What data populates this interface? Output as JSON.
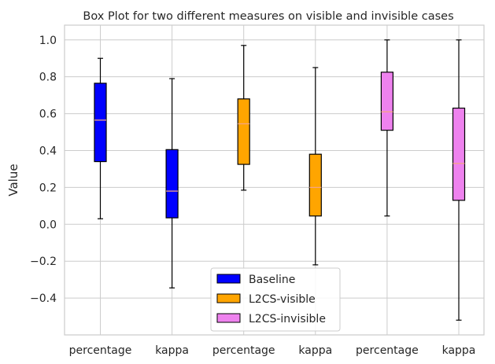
{
  "chart_data": {
    "type": "box",
    "title": "Box Plot for two different measures on visible and invisible cases",
    "xlabel": "",
    "ylabel": "Value",
    "ylim": [
      -0.6,
      1.08
    ],
    "yticks": [
      -0.4,
      -0.2,
      0.0,
      0.2,
      0.4,
      0.6,
      0.8,
      1.0
    ],
    "ytick_labels": [
      "−0.4",
      "−0.2",
      "0.0",
      "0.2",
      "0.4",
      "0.6",
      "0.8",
      "1.0"
    ],
    "categories": [
      "percentage",
      "kappa",
      "percentage",
      "kappa",
      "percentage",
      "kappa"
    ],
    "grid": true,
    "legend_position": "lower-center",
    "series": [
      {
        "name": "Baseline",
        "color": "#0000ff",
        "boxes": [
          {
            "category": "percentage",
            "min": 0.03,
            "q1": 0.34,
            "median": 0.565,
            "q3": 0.765,
            "max": 0.9
          },
          {
            "category": "kappa",
            "min": -0.345,
            "q1": 0.035,
            "median": 0.18,
            "q3": 0.405,
            "max": 0.79
          }
        ]
      },
      {
        "name": "L2CS-visible",
        "color": "#ffa500",
        "boxes": [
          {
            "category": "percentage",
            "min": 0.185,
            "q1": 0.325,
            "median": 0.545,
            "q3": 0.68,
            "max": 0.97
          },
          {
            "category": "kappa",
            "min": -0.22,
            "q1": 0.045,
            "median": 0.2,
            "q3": 0.38,
            "max": 0.85
          }
        ]
      },
      {
        "name": "L2CS-invisible",
        "color": "#ee82ee",
        "boxes": [
          {
            "category": "percentage",
            "min": 0.045,
            "q1": 0.51,
            "median": 0.61,
            "q3": 0.825,
            "max": 1.0
          },
          {
            "category": "kappa",
            "min": -0.52,
            "q1": 0.13,
            "median": 0.33,
            "q3": 0.63,
            "max": 1.0
          }
        ]
      }
    ],
    "median_color": "#f4a582"
  }
}
